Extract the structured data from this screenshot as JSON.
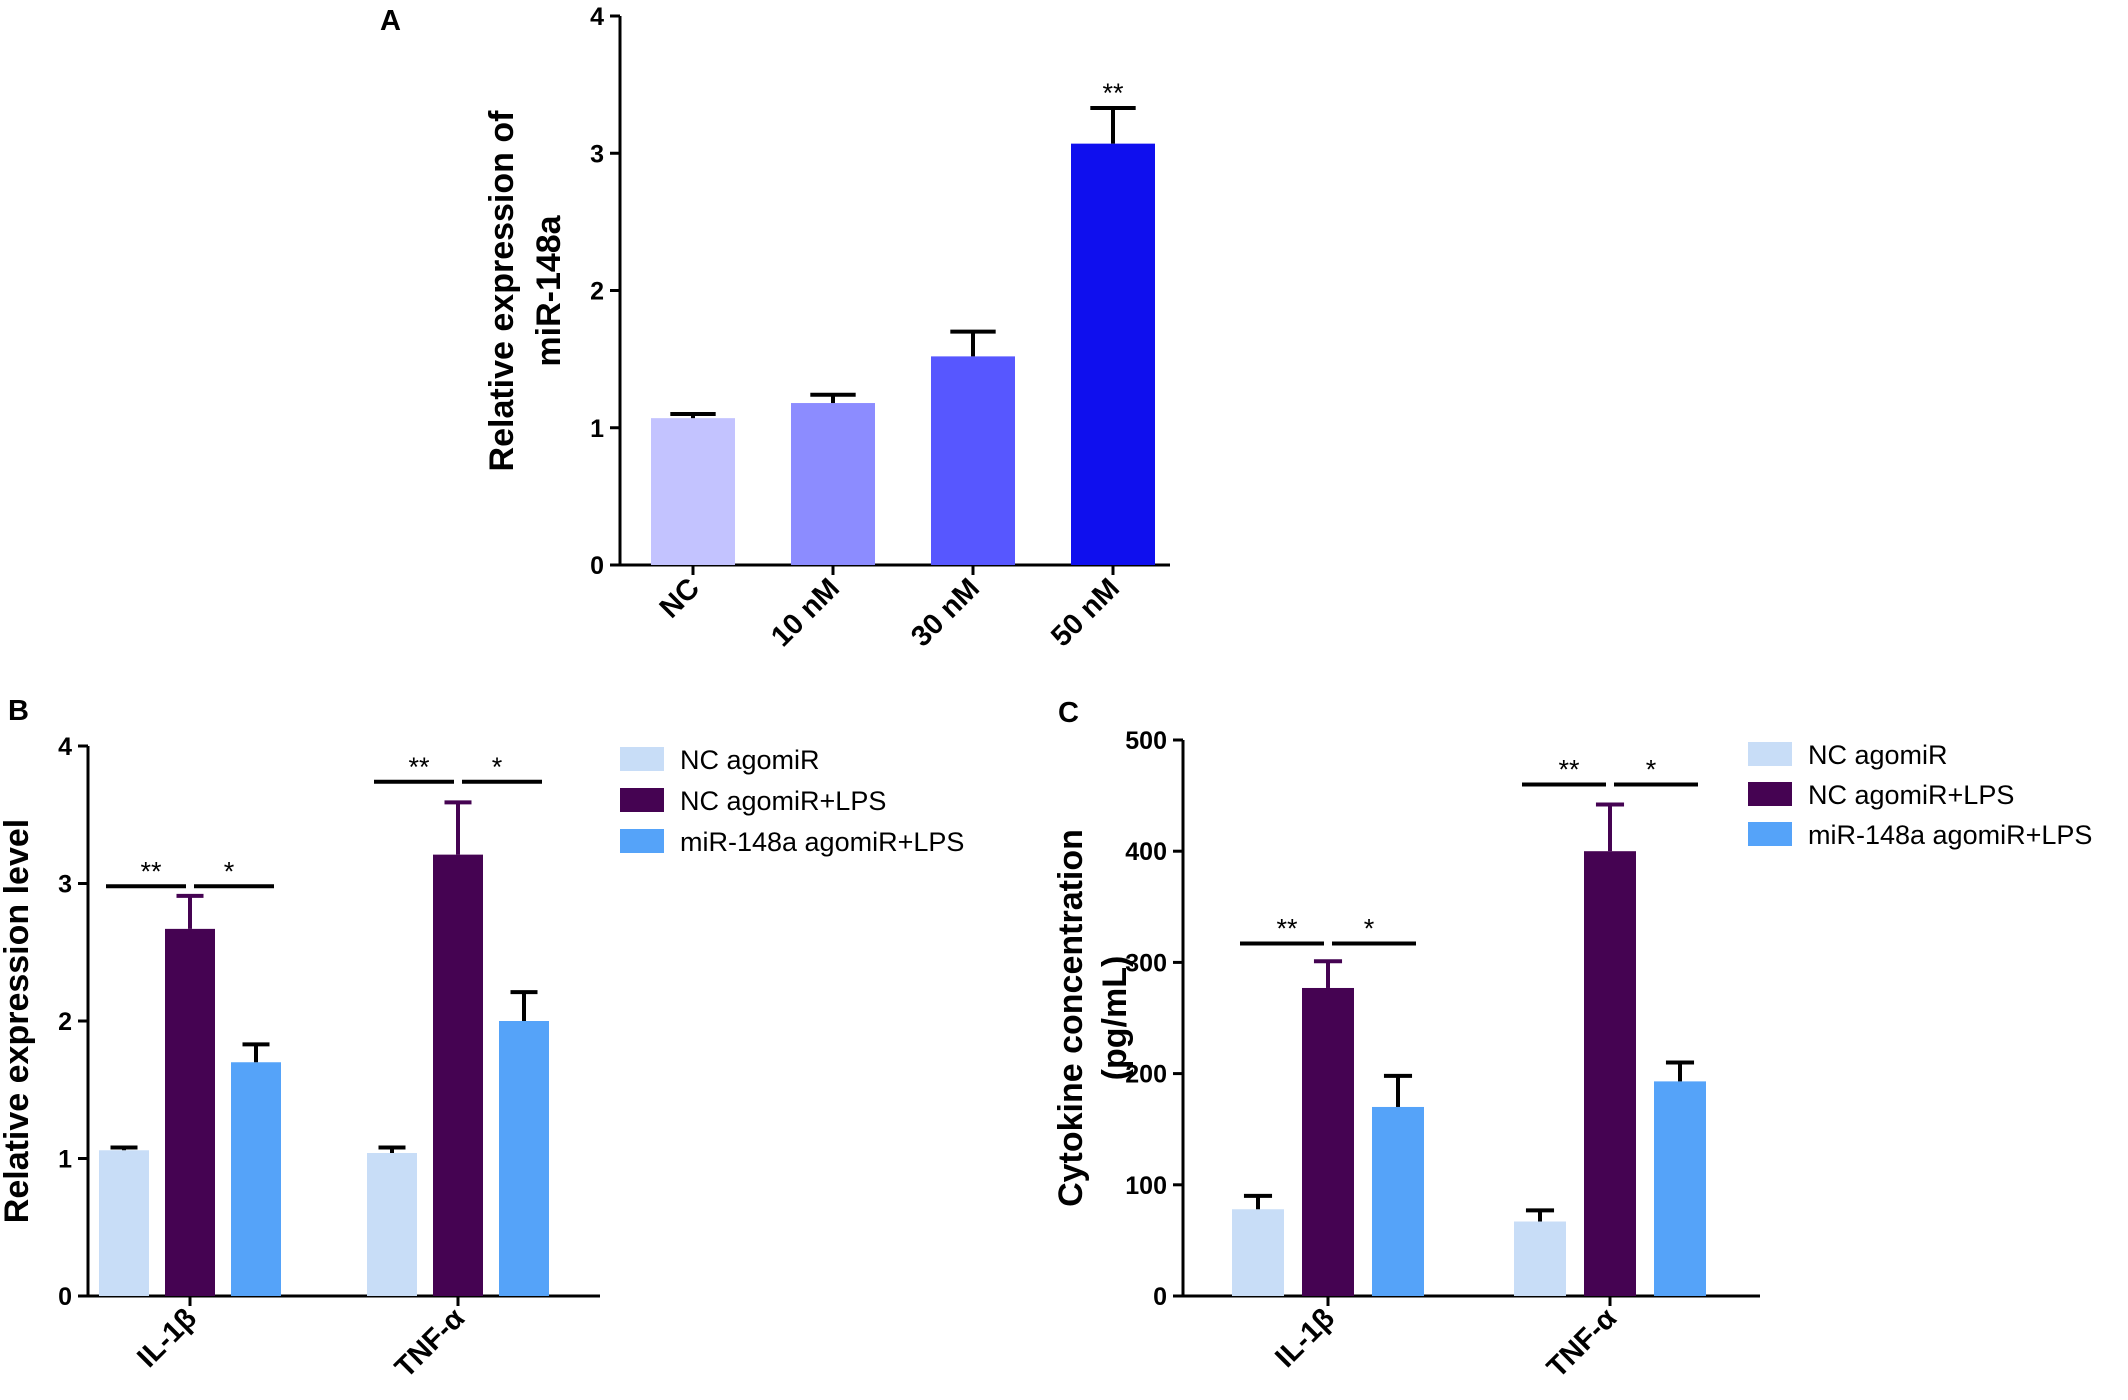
{
  "chart_data": [
    {
      "panel": "A",
      "type": "bar",
      "categories": [
        "NC",
        "10 nM",
        "30 nM",
        "50 nM"
      ],
      "values": [
        1.07,
        1.18,
        1.52,
        3.07
      ],
      "errors": [
        0.03,
        0.06,
        0.18,
        0.26
      ],
      "colors": [
        "#c3c3ff",
        "#8c8cff",
        "#5757ff",
        "#0f0fee"
      ],
      "ylabel_lines": [
        "Relative expression of",
        "miR-148a"
      ],
      "ylim": [
        0,
        4
      ],
      "yticks": [
        "0",
        "1",
        "2",
        "3",
        "4"
      ],
      "annotations": [
        {
          "category": "50 nM",
          "text": "**"
        }
      ],
      "grid": false,
      "legend": "none"
    },
    {
      "panel": "B",
      "type": "bar",
      "categories": [
        "IL-1β",
        "TNF-α"
      ],
      "series": [
        {
          "name": "NC agomiR",
          "color": "#c8ddf7",
          "values": [
            1.06,
            1.04
          ],
          "errors": [
            0.02,
            0.04
          ]
        },
        {
          "name": "NC agomiR+LPS",
          "color": "#450352",
          "values": [
            2.67,
            3.21
          ],
          "errors": [
            0.24,
            0.38
          ]
        },
        {
          "name": "miR-148a agomiR+LPS",
          "color": "#55a3f9",
          "values": [
            1.7,
            2.0
          ],
          "errors": [
            0.13,
            0.21
          ]
        }
      ],
      "ylabel_lines": [
        "Relative expression level"
      ],
      "ylim": [
        0,
        4
      ],
      "yticks": [
        "0",
        "1",
        "2",
        "3",
        "4"
      ],
      "significance": [
        {
          "category": "IL-1β",
          "left": "**",
          "right": "*",
          "y": 2.98
        },
        {
          "category": "TNF-α",
          "left": "**",
          "right": "*",
          "y": 3.74
        }
      ],
      "grid": false,
      "legend": "top-right"
    },
    {
      "panel": "C",
      "type": "bar",
      "categories": [
        "IL-1β",
        "TNF-α"
      ],
      "series": [
        {
          "name": "NC agomiR",
          "color": "#c8ddf7",
          "values": [
            78,
            67
          ],
          "errors": [
            12,
            10
          ]
        },
        {
          "name": "NC agomiR+LPS",
          "color": "#450352",
          "values": [
            277,
            400
          ],
          "errors": [
            24,
            42
          ]
        },
        {
          "name": "miR-148a agomiR+LPS",
          "color": "#55a3f9",
          "values": [
            170,
            193
          ],
          "errors": [
            28,
            17
          ]
        }
      ],
      "ylabel_lines": [
        "Cytokine concentration",
        "(pg/mL)"
      ],
      "ylim": [
        0,
        500
      ],
      "yticks": [
        "0",
        "100",
        "200",
        "300",
        "400",
        "500"
      ],
      "significance": [
        {
          "category": "IL-1β",
          "left": "**",
          "right": "*",
          "y": 317
        },
        {
          "category": "TNF-α",
          "left": "**",
          "right": "*",
          "y": 460
        }
      ],
      "grid": false,
      "legend": "top-right"
    }
  ]
}
